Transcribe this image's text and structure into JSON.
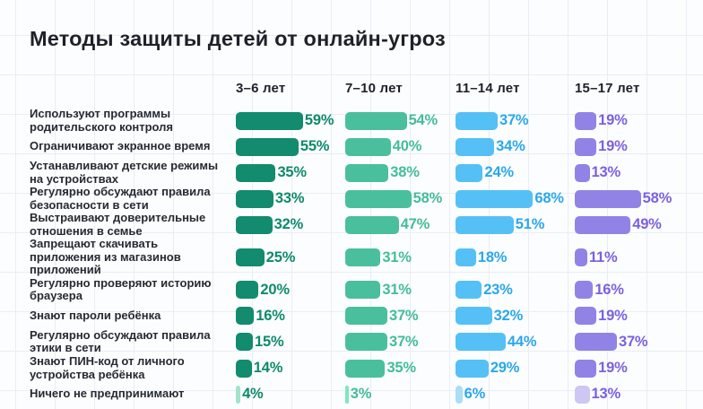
{
  "chart_data": {
    "type": "bar",
    "orientation": "horizontal",
    "title": "Методы защиты детей от онлайн-угроз",
    "unit": "%",
    "legend_position": "top-column-headers",
    "grid": "faint background squares",
    "xlim": [
      0,
      100
    ],
    "categories": [
      "Используют программы родительского контроля",
      "Ограничивают экранное время",
      "Устанавливают детские режимы на устройствах",
      "Регулярно обсуждают правила безопасности в сети",
      "Выстраивают доверительные отношения в семье",
      "Запрещают скачивать приложения из магазинов приложений",
      "Регулярно проверяют историю браузера",
      "Знают пароли ребёнка",
      "Регулярно обсуждают правила этики в сети",
      "Знают ПИН-код от личного устройства ребёнка",
      "Ничего не предпринимают"
    ],
    "series": [
      {
        "name": "3–6 лет",
        "color": "#128b6e",
        "pale_color": "#a3e3c9",
        "label_color": "#0e8a6c",
        "values": [
          59,
          55,
          35,
          33,
          32,
          25,
          20,
          16,
          15,
          14,
          4
        ]
      },
      {
        "name": "7–10 лет",
        "color": "#4abf9d",
        "pale_color": "#7de7bd",
        "label_color": "#43bd99",
        "values": [
          54,
          40,
          38,
          58,
          47,
          31,
          31,
          37,
          37,
          35,
          3
        ]
      },
      {
        "name": "11–14 лет",
        "color": "#55c0f6",
        "pale_color": "#a9def7",
        "label_color": "#2ba7ec",
        "values": [
          37,
          34,
          24,
          68,
          51,
          18,
          23,
          32,
          44,
          29,
          6
        ]
      },
      {
        "name": "15–17 лет",
        "color": "#9183e6",
        "pale_color": "#cec6f3",
        "label_color": "#7b61de",
        "values": [
          19,
          19,
          13,
          58,
          49,
          11,
          16,
          19,
          37,
          19,
          13
        ]
      }
    ],
    "note_visual": "last category row rendered with pale bars"
  }
}
